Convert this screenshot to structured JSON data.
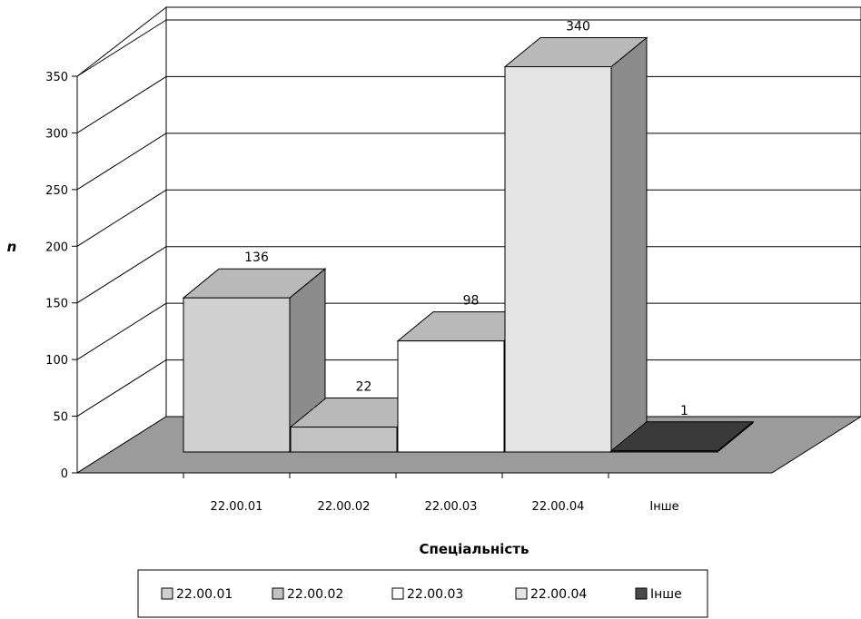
{
  "chart_data": {
    "type": "bar",
    "categories": [
      "22.00.01",
      "22.00.02",
      "22.00.03",
      "22.00.04",
      "Інше"
    ],
    "values": [
      136,
      22,
      98,
      340,
      1
    ],
    "data_labels": [
      "136",
      "22",
      "98",
      "340",
      "1"
    ],
    "ylabel": "n",
    "xlabel": "Спеціальність",
    "ylim": [
      0,
      350
    ],
    "yticks": [
      "0",
      "50",
      "100",
      "150",
      "200",
      "250",
      "300",
      "350"
    ],
    "grid": true,
    "legend": {
      "position": "bottom",
      "items": [
        "22.00.01",
        "22.00.02",
        "22.00.03",
        "22.00.04",
        "Інше"
      ]
    },
    "colors": {
      "fronts": [
        "#d0d0d0",
        "#c2c2c2",
        "#ffffff",
        "#e4e4e4",
        "#4a4a4a"
      ],
      "floor": "#9b9b9b",
      "side": "#8c8c8c"
    },
    "style": "3d"
  }
}
